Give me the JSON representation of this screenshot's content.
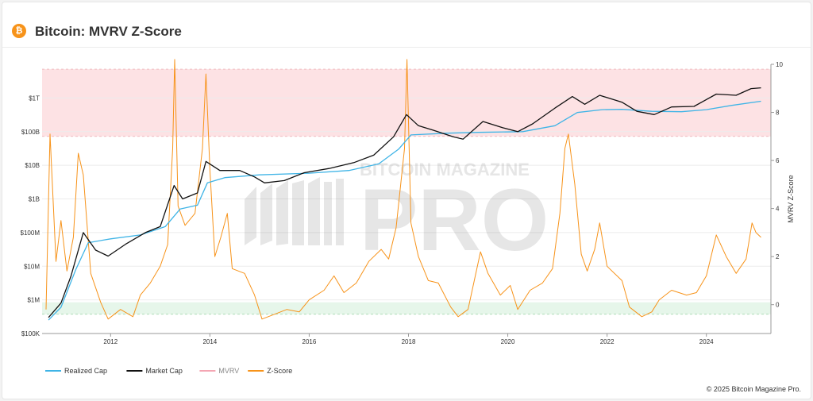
{
  "header": {
    "logo_glyph": "₿",
    "title": "Bitcoin: MVRV Z-Score"
  },
  "footer": {
    "copyright": "© 2025 Bitcoin Magazine Pro."
  },
  "watermark": {
    "top": "BITCOIN MAGAZINE",
    "main": "PRO"
  },
  "chart_data": {
    "type": "line",
    "title": "Bitcoin: MVRV Z-Score",
    "x_ticks": [
      "2012",
      "2014",
      "2016",
      "2018",
      "2020",
      "2022",
      "2024"
    ],
    "y_left": {
      "scale": "log",
      "ticks": [
        "$100K",
        "$1M",
        "$10M",
        "$100M",
        "$1B",
        "$10B",
        "$100B",
        "$1T"
      ],
      "range": [
        100000,
        10000000000000
      ]
    },
    "y_right": {
      "label": "MVRV Z-Score",
      "ticks": [
        "0",
        "2",
        "4",
        "6",
        "8",
        "10"
      ],
      "range": [
        -1.2,
        10
      ]
    },
    "bands": [
      {
        "name": "overvalued",
        "from": 7.0,
        "to": 9.8,
        "color": "#fde2e4"
      },
      {
        "name": "undervalued",
        "from": -0.4,
        "to": 0.1,
        "color": "#e6f6ea"
      }
    ],
    "legend": {
      "placement": "bottom-left",
      "items": [
        {
          "name": "Realized Cap",
          "color": "#3fb4e6"
        },
        {
          "name": "Market Cap",
          "color": "#111111"
        },
        {
          "name": "MVRV",
          "color": "#f4a6b3"
        },
        {
          "name": "Z-Score",
          "color": "#f7931a"
        }
      ]
    },
    "series": [
      {
        "name": "Market Cap",
        "color": "#111111",
        "axis": "left",
        "points": [
          [
            2010.75,
            300000
          ],
          [
            2011.0,
            800000
          ],
          [
            2011.2,
            5000000
          ],
          [
            2011.45,
            100000000
          ],
          [
            2011.7,
            30000000
          ],
          [
            2011.95,
            20000000
          ],
          [
            2012.3,
            45000000
          ],
          [
            2012.7,
            100000000
          ],
          [
            2013.0,
            150000000
          ],
          [
            2013.28,
            2500000000
          ],
          [
            2013.45,
            1000000000
          ],
          [
            2013.75,
            1500000000
          ],
          [
            2013.92,
            13000000000
          ],
          [
            2014.2,
            7000000000
          ],
          [
            2014.6,
            7000000000
          ],
          [
            2014.9,
            4500000000
          ],
          [
            2015.1,
            3000000000
          ],
          [
            2015.5,
            3500000000
          ],
          [
            2015.9,
            6000000000
          ],
          [
            2016.4,
            8000000000
          ],
          [
            2016.9,
            12000000000
          ],
          [
            2017.3,
            20000000000
          ],
          [
            2017.7,
            70000000000
          ],
          [
            2017.96,
            320000000000
          ],
          [
            2018.2,
            150000000000
          ],
          [
            2018.5,
            110000000000
          ],
          [
            2018.9,
            70000000000
          ],
          [
            2019.1,
            60000000000
          ],
          [
            2019.5,
            200000000000
          ],
          [
            2019.9,
            130000000000
          ],
          [
            2020.2,
            100000000000
          ],
          [
            2020.5,
            170000000000
          ],
          [
            2020.95,
            500000000000
          ],
          [
            2021.3,
            1100000000000
          ],
          [
            2021.55,
            650000000000
          ],
          [
            2021.85,
            1200000000000
          ],
          [
            2022.3,
            750000000000
          ],
          [
            2022.6,
            400000000000
          ],
          [
            2022.95,
            320000000000
          ],
          [
            2023.3,
            540000000000
          ],
          [
            2023.75,
            560000000000
          ],
          [
            2024.2,
            1300000000000
          ],
          [
            2024.6,
            1200000000000
          ],
          [
            2024.9,
            1900000000000
          ],
          [
            2025.1,
            2000000000000
          ]
        ]
      },
      {
        "name": "Realized Cap",
        "color": "#3fb4e6",
        "axis": "left",
        "points": [
          [
            2010.75,
            250000
          ],
          [
            2011.0,
            600000
          ],
          [
            2011.3,
            8000000
          ],
          [
            2011.55,
            50000000
          ],
          [
            2012.0,
            65000000
          ],
          [
            2012.6,
            85000000
          ],
          [
            2013.1,
            150000000
          ],
          [
            2013.4,
            500000000
          ],
          [
            2013.75,
            650000000
          ],
          [
            2013.95,
            3000000000
          ],
          [
            2014.3,
            4300000000
          ],
          [
            2015.0,
            5200000000
          ],
          [
            2016.0,
            5800000000
          ],
          [
            2016.8,
            7000000000
          ],
          [
            2017.4,
            11000000000
          ],
          [
            2017.8,
            30000000000
          ],
          [
            2018.05,
            80000000000
          ],
          [
            2018.8,
            90000000000
          ],
          [
            2019.4,
            95000000000
          ],
          [
            2020.3,
            100000000000
          ],
          [
            2020.95,
            150000000000
          ],
          [
            2021.4,
            370000000000
          ],
          [
            2021.9,
            450000000000
          ],
          [
            2022.3,
            460000000000
          ],
          [
            2022.9,
            400000000000
          ],
          [
            2023.5,
            390000000000
          ],
          [
            2024.0,
            450000000000
          ],
          [
            2024.5,
            600000000000
          ],
          [
            2025.1,
            800000000000
          ]
        ]
      },
      {
        "name": "Z-Score",
        "color": "#f7931a",
        "axis": "right",
        "points": [
          [
            2010.7,
            -0.2
          ],
          [
            2010.78,
            7.1
          ],
          [
            2010.9,
            1.8
          ],
          [
            2011.0,
            3.5
          ],
          [
            2011.12,
            1.4
          ],
          [
            2011.25,
            2.8
          ],
          [
            2011.35,
            6.3
          ],
          [
            2011.45,
            5.4
          ],
          [
            2011.6,
            1.3
          ],
          [
            2011.8,
            0.1
          ],
          [
            2011.95,
            -0.6
          ],
          [
            2012.2,
            -0.2
          ],
          [
            2012.45,
            -0.5
          ],
          [
            2012.6,
            0.4
          ],
          [
            2012.8,
            0.9
          ],
          [
            2013.0,
            1.6
          ],
          [
            2013.15,
            2.5
          ],
          [
            2013.25,
            6.5
          ],
          [
            2013.29,
            10.2
          ],
          [
            2013.36,
            4.1
          ],
          [
            2013.5,
            3.3
          ],
          [
            2013.7,
            3.8
          ],
          [
            2013.85,
            6.5
          ],
          [
            2013.92,
            9.6
          ],
          [
            2014.0,
            5.6
          ],
          [
            2014.1,
            2.0
          ],
          [
            2014.22,
            2.8
          ],
          [
            2014.35,
            3.8
          ],
          [
            2014.45,
            1.5
          ],
          [
            2014.7,
            1.3
          ],
          [
            2014.9,
            0.4
          ],
          [
            2015.05,
            -0.6
          ],
          [
            2015.3,
            -0.4
          ],
          [
            2015.55,
            -0.2
          ],
          [
            2015.8,
            -0.3
          ],
          [
            2016.0,
            0.2
          ],
          [
            2016.3,
            0.6
          ],
          [
            2016.5,
            1.2
          ],
          [
            2016.7,
            0.5
          ],
          [
            2016.95,
            0.9
          ],
          [
            2017.2,
            1.8
          ],
          [
            2017.45,
            2.3
          ],
          [
            2017.6,
            1.9
          ],
          [
            2017.75,
            3.2
          ],
          [
            2017.92,
            6.5
          ],
          [
            2017.97,
            10.2
          ],
          [
            2018.05,
            3.4
          ],
          [
            2018.2,
            2.0
          ],
          [
            2018.4,
            1.0
          ],
          [
            2018.6,
            0.9
          ],
          [
            2018.85,
            -0.1
          ],
          [
            2019.0,
            -0.5
          ],
          [
            2019.2,
            -0.2
          ],
          [
            2019.45,
            2.2
          ],
          [
            2019.6,
            1.3
          ],
          [
            2019.85,
            0.4
          ],
          [
            2020.05,
            0.8
          ],
          [
            2020.2,
            -0.2
          ],
          [
            2020.45,
            0.6
          ],
          [
            2020.7,
            0.9
          ],
          [
            2020.9,
            1.5
          ],
          [
            2021.05,
            3.8
          ],
          [
            2021.15,
            6.5
          ],
          [
            2021.22,
            7.1
          ],
          [
            2021.35,
            5.0
          ],
          [
            2021.48,
            2.1
          ],
          [
            2021.6,
            1.4
          ],
          [
            2021.75,
            2.3
          ],
          [
            2021.85,
            3.4
          ],
          [
            2022.0,
            1.6
          ],
          [
            2022.3,
            1.0
          ],
          [
            2022.45,
            -0.1
          ],
          [
            2022.7,
            -0.5
          ],
          [
            2022.9,
            -0.3
          ],
          [
            2023.05,
            0.2
          ],
          [
            2023.3,
            0.6
          ],
          [
            2023.6,
            0.4
          ],
          [
            2023.8,
            0.5
          ],
          [
            2024.0,
            1.2
          ],
          [
            2024.2,
            2.9
          ],
          [
            2024.4,
            2.0
          ],
          [
            2024.6,
            1.3
          ],
          [
            2024.8,
            1.9
          ],
          [
            2024.92,
            3.4
          ],
          [
            2025.0,
            3.0
          ],
          [
            2025.1,
            2.8
          ]
        ]
      }
    ]
  }
}
